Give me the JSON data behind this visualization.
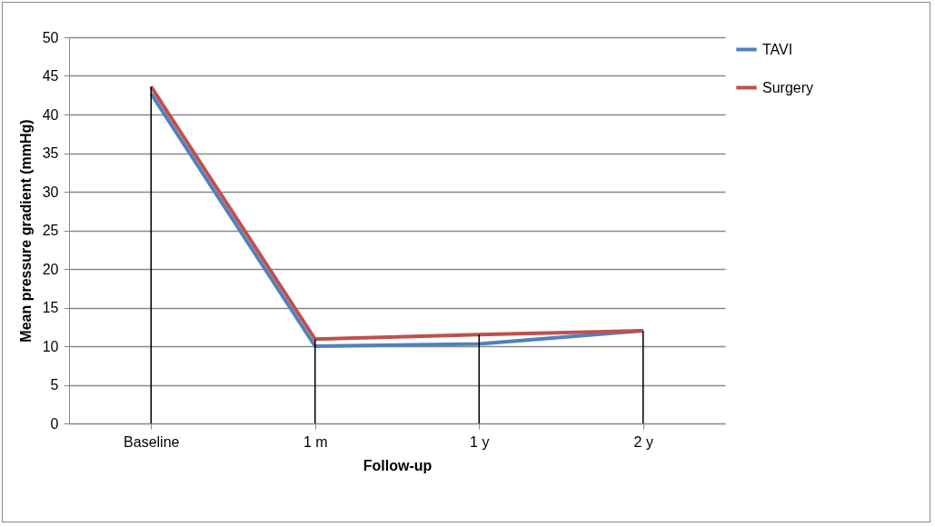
{
  "chart_data": {
    "type": "line",
    "xlabel": "Follow-up",
    "ylabel": "Mean pressure gradient (mmHg)",
    "categories": [
      "Baseline",
      "1 m",
      "1 y",
      "2 y"
    ],
    "series": [
      {
        "name": "TAVI",
        "color": "#4f81bd",
        "values": [
          42.7,
          10.0,
          10.3,
          12.0
        ]
      },
      {
        "name": "Surgery",
        "color": "#c0504d",
        "values": [
          43.6,
          10.9,
          11.5,
          12.0
        ]
      }
    ],
    "ylim": [
      0,
      50
    ],
    "yticks": [
      0,
      5,
      10,
      15,
      20,
      25,
      30,
      35,
      40,
      45,
      50
    ],
    "ref_lines": [
      {
        "axis": "x",
        "value": "Baseline",
        "color": "#000000"
      },
      {
        "axis": "x",
        "value": "1 m",
        "color": "#000000"
      },
      {
        "axis": "x",
        "value": "1 y",
        "color": "#000000"
      },
      {
        "axis": "x",
        "value": "2 y",
        "color": "#000000"
      }
    ],
    "grid": "y",
    "legend": "right",
    "marker": "none",
    "line_style": "solid"
  }
}
